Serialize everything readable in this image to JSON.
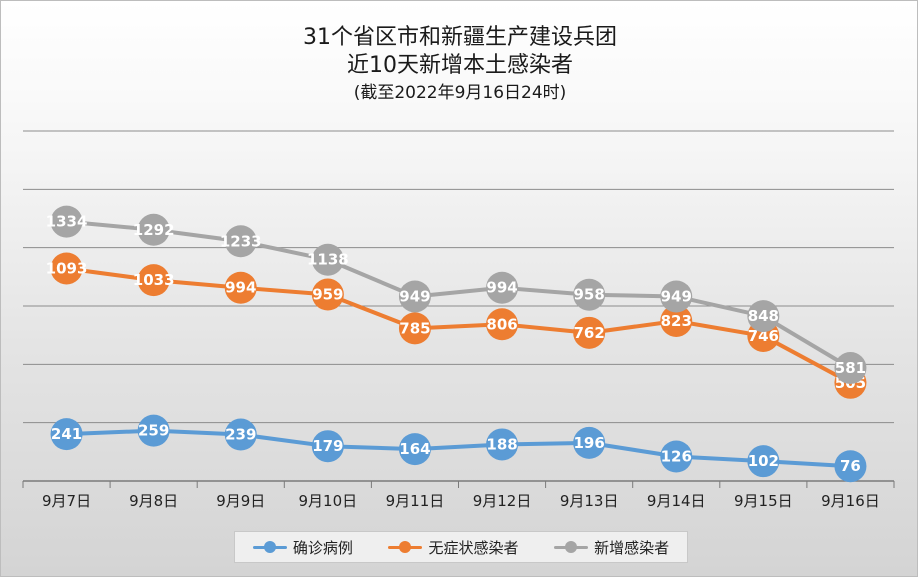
{
  "title_line1": "31个省区市和新疆生产建设兵团",
  "title_line2": "近10天新增本土感染者",
  "title_line3": "(截至2022年9月16日24时)",
  "chart_data": {
    "type": "line",
    "categories": [
      "9月7日",
      "9月8日",
      "9月9日",
      "9月10日",
      "9月11日",
      "9月12日",
      "9月13日",
      "9月14日",
      "9月15日",
      "9月16日"
    ],
    "series": [
      {
        "name": "确诊病例",
        "color": "#5b9bd5",
        "values": [
          241,
          259,
          239,
          179,
          164,
          188,
          196,
          126,
          102,
          76
        ]
      },
      {
        "name": "无症状感染者",
        "color": "#ed7d31",
        "values": [
          1093,
          1033,
          994,
          959,
          785,
          806,
          762,
          823,
          746,
          505
        ]
      },
      {
        "name": "新增感染者",
        "color": "#a5a5a5",
        "values": [
          1334,
          1292,
          1233,
          1138,
          949,
          994,
          958,
          949,
          848,
          581
        ]
      }
    ],
    "ylim": [
      0,
      1800
    ],
    "grid": true,
    "legend_position": "bottom"
  }
}
